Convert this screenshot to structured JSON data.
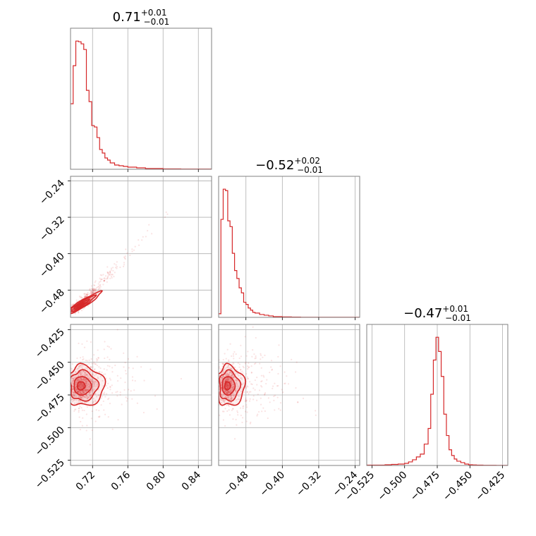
{
  "titles": [
    {
      "main": "0.71",
      "sup": "+0.01",
      "sub": "−0.01"
    },
    {
      "main": "−0.52",
      "sup": "+0.02",
      "sub": "−0.01"
    },
    {
      "main": "−0.47",
      "sup": "+0.01",
      "sub": "−0.01"
    }
  ],
  "colors": {
    "series": "#d62728",
    "grid": "#b0b0b0",
    "frame": "#808080"
  },
  "chart_data": {
    "type": "corner",
    "grid": true,
    "parameters": [
      {
        "index": 0,
        "median": 0.71,
        "plus": 0.01,
        "minus": 0.01,
        "range": [
          0.695,
          0.855
        ],
        "ticks": [
          0.72,
          0.76,
          0.8,
          0.84
        ],
        "tick_labels": [
          "0.72",
          "0.76",
          "0.80",
          "0.84"
        ]
      },
      {
        "index": 1,
        "median": -0.52,
        "plus": 0.02,
        "minus": 0.01,
        "range": [
          -0.54,
          -0.23
        ],
        "ticks": [
          -0.48,
          -0.4,
          -0.32,
          -0.24
        ],
        "tick_labels": [
          "−0.48",
          "−0.40",
          "−0.32",
          "−0.24"
        ]
      },
      {
        "index": 2,
        "median": -0.47,
        "plus": 0.01,
        "minus": 0.01,
        "range": [
          -0.529,
          -0.421
        ],
        "ticks": [
          -0.525,
          -0.5,
          -0.475,
          -0.45,
          -0.425
        ],
        "tick_labels": [
          "−0.525",
          "−0.500",
          "−0.475",
          "−0.450",
          "−0.425"
        ]
      }
    ],
    "histograms": [
      {
        "param": 0,
        "edges": [
          0.695,
          0.698,
          0.701,
          0.704,
          0.707,
          0.71,
          0.713,
          0.716,
          0.719,
          0.722,
          0.725,
          0.728,
          0.731,
          0.734,
          0.737,
          0.74,
          0.745,
          0.75,
          0.755,
          0.76,
          0.77,
          0.78,
          0.79,
          0.8,
          0.82,
          0.855
        ],
        "counts": [
          93,
          147,
          182,
          181,
          178,
          170,
          112,
          96,
          62,
          60,
          45,
          28,
          23,
          16,
          13,
          9,
          6,
          5,
          4,
          3,
          2,
          1,
          1,
          0.5,
          0.3
        ]
      },
      {
        "param": 1,
        "edges": [
          -0.54,
          -0.535,
          -0.53,
          -0.525,
          -0.52,
          -0.515,
          -0.51,
          -0.505,
          -0.5,
          -0.495,
          -0.49,
          -0.485,
          -0.48,
          -0.475,
          -0.47,
          -0.465,
          -0.46,
          -0.45,
          -0.44,
          -0.43,
          -0.42,
          -0.4,
          -0.38,
          -0.36,
          -0.23
        ],
        "counts": [
          5,
          136,
          178,
          176,
          134,
          126,
          89,
          65,
          54,
          41,
          34,
          21,
          18,
          13,
          10,
          7,
          6,
          4,
          3,
          2,
          1,
          0.6,
          0.4,
          0.2
        ]
      },
      {
        "param": 2,
        "edges": [
          -0.529,
          -0.522,
          -0.515,
          -0.51,
          -0.505,
          -0.5,
          -0.497,
          -0.494,
          -0.491,
          -0.488,
          -0.485,
          -0.482,
          -0.48,
          -0.478,
          -0.476,
          -0.474,
          -0.472,
          -0.47,
          -0.468,
          -0.466,
          -0.464,
          -0.462,
          -0.46,
          -0.457,
          -0.454,
          -0.451,
          -0.448,
          -0.445,
          -0.44,
          -0.43,
          -0.421
        ],
        "counts": [
          0.5,
          0.5,
          1,
          1.5,
          2,
          3,
          5,
          8,
          12,
          16,
          30,
          52,
          100,
          148,
          180,
          160,
          125,
          72,
          42,
          22,
          14,
          9,
          6,
          4,
          2,
          1,
          0.8,
          0.5,
          0.3,
          0.2
        ]
      }
    ],
    "densities_2d": [
      {
        "x_param": 0,
        "y_param": 1,
        "mean": [
          0.705,
          -0.515
        ],
        "sd": [
          0.006,
          0.007
        ],
        "rho": 0.82
      },
      {
        "x_param": 0,
        "y_param": 2,
        "mean": [
          0.706,
          -0.468
        ],
        "sd": [
          0.007,
          0.007
        ],
        "rho": 0.0
      },
      {
        "x_param": 1,
        "y_param": 2,
        "mean": [
          -0.522,
          -0.468
        ],
        "sd": [
          0.01,
          0.007
        ],
        "rho": 0.0
      }
    ]
  }
}
